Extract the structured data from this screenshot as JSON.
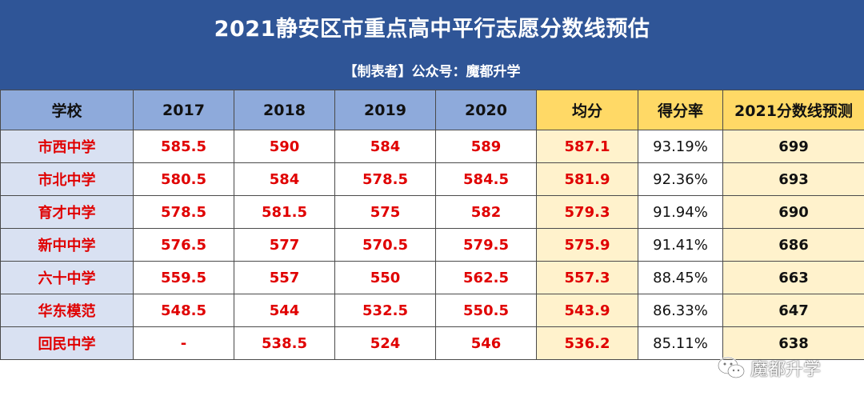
{
  "header": {
    "title": "2021静安区市重点高中平行志愿分数线预估",
    "subtitle": "【制表者】公众号：魔都升学"
  },
  "table": {
    "columns": [
      "学校",
      "2017",
      "2018",
      "2019",
      "2020",
      "均分",
      "得分率",
      "2021分数线预测"
    ],
    "rows": [
      {
        "school": "市西中学",
        "y2017": "585.5",
        "y2018": "590",
        "y2019": "584",
        "y2020": "589",
        "avg": "587.1",
        "rate": "93.19%",
        "pred": "699"
      },
      {
        "school": "市北中学",
        "y2017": "580.5",
        "y2018": "584",
        "y2019": "578.5",
        "y2020": "584.5",
        "avg": "581.9",
        "rate": "92.36%",
        "pred": "693"
      },
      {
        "school": "育才中学",
        "y2017": "578.5",
        "y2018": "581.5",
        "y2019": "575",
        "y2020": "582",
        "avg": "579.3",
        "rate": "91.94%",
        "pred": "690"
      },
      {
        "school": "新中中学",
        "y2017": "576.5",
        "y2018": "577",
        "y2019": "570.5",
        "y2020": "579.5",
        "avg": "575.9",
        "rate": "91.41%",
        "pred": "686"
      },
      {
        "school": "六十中学",
        "y2017": "559.5",
        "y2018": "557",
        "y2019": "550",
        "y2020": "562.5",
        "avg": "557.3",
        "rate": "88.45%",
        "pred": "663"
      },
      {
        "school": "华东模范",
        "y2017": "548.5",
        "y2018": "544",
        "y2019": "532.5",
        "y2020": "550.5",
        "avg": "543.9",
        "rate": "86.33%",
        "pred": "647"
      },
      {
        "school": "回民中学",
        "y2017": "-",
        "y2018": "538.5",
        "y2019": "524",
        "y2020": "546",
        "avg": "536.2",
        "rate": "85.11%",
        "pred": "638"
      }
    ]
  },
  "watermark": {
    "text": "魔都升学",
    "icon": "wechat-icon"
  },
  "colors": {
    "header_bg": "#2f5597",
    "column_header_bg": "#8eaadb",
    "highlight_header_bg": "#ffd966",
    "school_cell_bg": "#d9e1f2",
    "highlight_cell_bg": "#fff2cc",
    "value_text": "#e00000"
  }
}
